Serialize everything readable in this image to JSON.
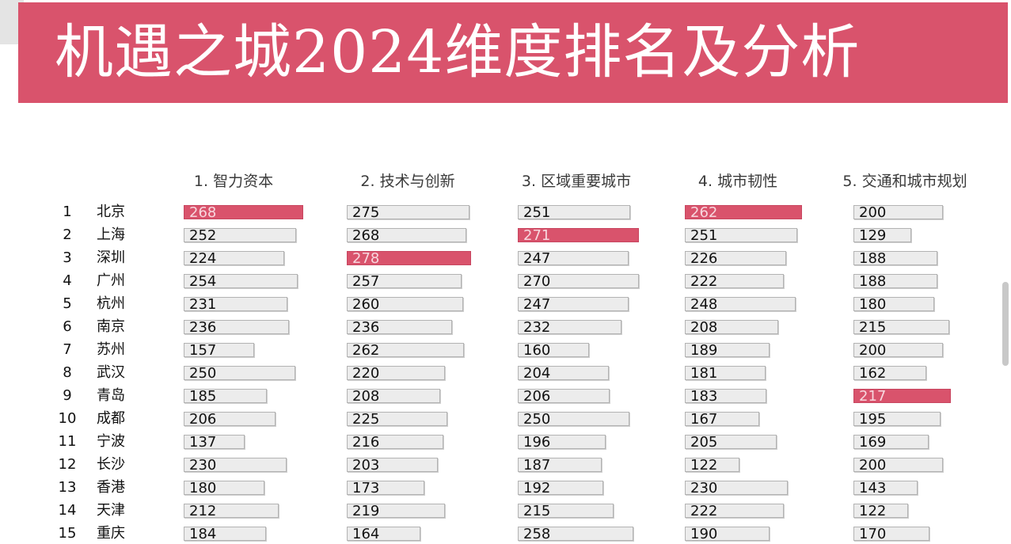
{
  "title": "机遇之城2024维度排名及分析",
  "colors": {
    "banner": "#d9536c",
    "highlight": "#d9536c",
    "bar_fill": "#ececec",
    "bar_border": "#b3b3b3"
  },
  "chart_data": {
    "type": "bar",
    "orientation": "horizontal",
    "title": "机遇之城2024维度排名及分析",
    "ranks": [
      "1",
      "2",
      "3",
      "4",
      "5",
      "6",
      "7",
      "8",
      "9",
      "10",
      "11",
      "12",
      "13",
      "14",
      "15"
    ],
    "categories": [
      "北京",
      "上海",
      "深圳",
      "广州",
      "杭州",
      "南京",
      "苏州",
      "武汉",
      "青岛",
      "成都",
      "宁波",
      "长沙",
      "香港",
      "天津",
      "重庆"
    ],
    "series": [
      {
        "name": "1. 智力资本",
        "values": [
          268,
          252,
          224,
          254,
          231,
          236,
          157,
          250,
          185,
          206,
          137,
          230,
          180,
          212,
          184
        ]
      },
      {
        "name": "2. 技术与创新",
        "values": [
          275,
          268,
          278,
          257,
          260,
          236,
          262,
          220,
          208,
          225,
          216,
          203,
          173,
          219,
          164
        ]
      },
      {
        "name": "3. 区域重要城市",
        "values": [
          251,
          271,
          247,
          270,
          247,
          232,
          160,
          204,
          206,
          250,
          196,
          187,
          192,
          215,
          258
        ]
      },
      {
        "name": "4. 城市韧性",
        "values": [
          262,
          251,
          226,
          222,
          248,
          208,
          189,
          181,
          183,
          167,
          205,
          122,
          230,
          222,
          190
        ]
      },
      {
        "name": "5. 交通和城市规划",
        "values": [
          200,
          129,
          188,
          188,
          180,
          215,
          200,
          162,
          217,
          195,
          169,
          200,
          143,
          122,
          170
        ]
      }
    ],
    "highlighted": [
      0,
      2,
      1,
      0,
      8
    ]
  }
}
